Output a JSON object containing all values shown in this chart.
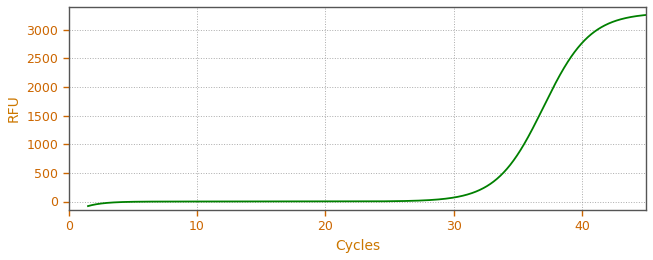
{
  "xlabel": "Cycles",
  "ylabel": "RFU",
  "xlim": [
    0,
    45
  ],
  "ylim": [
    -150,
    3400
  ],
  "xticks": [
    0,
    10,
    20,
    30,
    40
  ],
  "yticks": [
    0,
    500,
    1000,
    1500,
    2000,
    2500,
    3000
  ],
  "line_color": "#008000",
  "line_width": 1.3,
  "background_color": "#ffffff",
  "grid_color": "#888888",
  "sigmoid_L": 3300,
  "sigmoid_k": 0.55,
  "sigmoid_x0": 37.0,
  "x_start": 1.5,
  "x_end": 45,
  "spine_color": "#555555",
  "tick_color": "#cc7700",
  "label_color": "#cc7700",
  "tick_label_color": "#cc6600"
}
